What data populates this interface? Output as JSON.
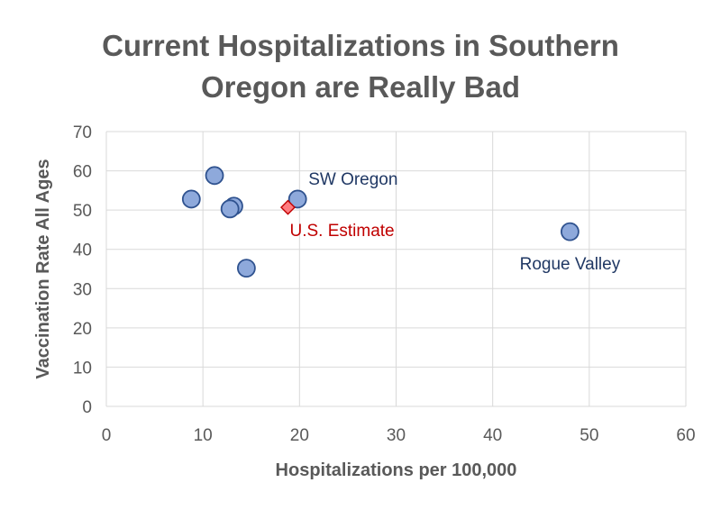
{
  "chart_data": {
    "type": "scatter",
    "title_line1": "Current Hospitalizations in Southern",
    "title_line2": "Oregon are Really Bad",
    "xlabel": "Hospitalizations per 100,000",
    "ylabel": "Vaccination Rate All Ages",
    "xlim": [
      0,
      60
    ],
    "ylim": [
      0,
      70
    ],
    "xticks": [
      0,
      10,
      20,
      30,
      40,
      50,
      60
    ],
    "yticks": [
      0,
      10,
      20,
      30,
      40,
      50,
      60,
      70
    ],
    "grid": "horizontal and vertical",
    "series": [
      {
        "marker": "circle",
        "color": "#8EA9DB",
        "edge_color": "#2F528F",
        "points": [
          {
            "x": 8.8,
            "y": 52.8
          },
          {
            "x": 11.2,
            "y": 58.8
          },
          {
            "x": 13.2,
            "y": 51.0
          },
          {
            "x": 12.8,
            "y": 50.3
          },
          {
            "x": 14.5,
            "y": 35.2
          },
          {
            "x": 19.8,
            "y": 52.8,
            "label": "SW Oregon"
          },
          {
            "x": 48.0,
            "y": 44.5,
            "label": "Rogue Valley"
          }
        ]
      },
      {
        "marker": "diamond",
        "color": "#FF7C80",
        "edge_color": "#C00000",
        "points": [
          {
            "x": 18.8,
            "y": 50.7,
            "label": "U.S. Estimate"
          }
        ]
      }
    ],
    "label_colors": {
      "SW Oregon": "#203864",
      "Rogue Valley": "#203864",
      "U.S. Estimate": "#C00000"
    }
  }
}
